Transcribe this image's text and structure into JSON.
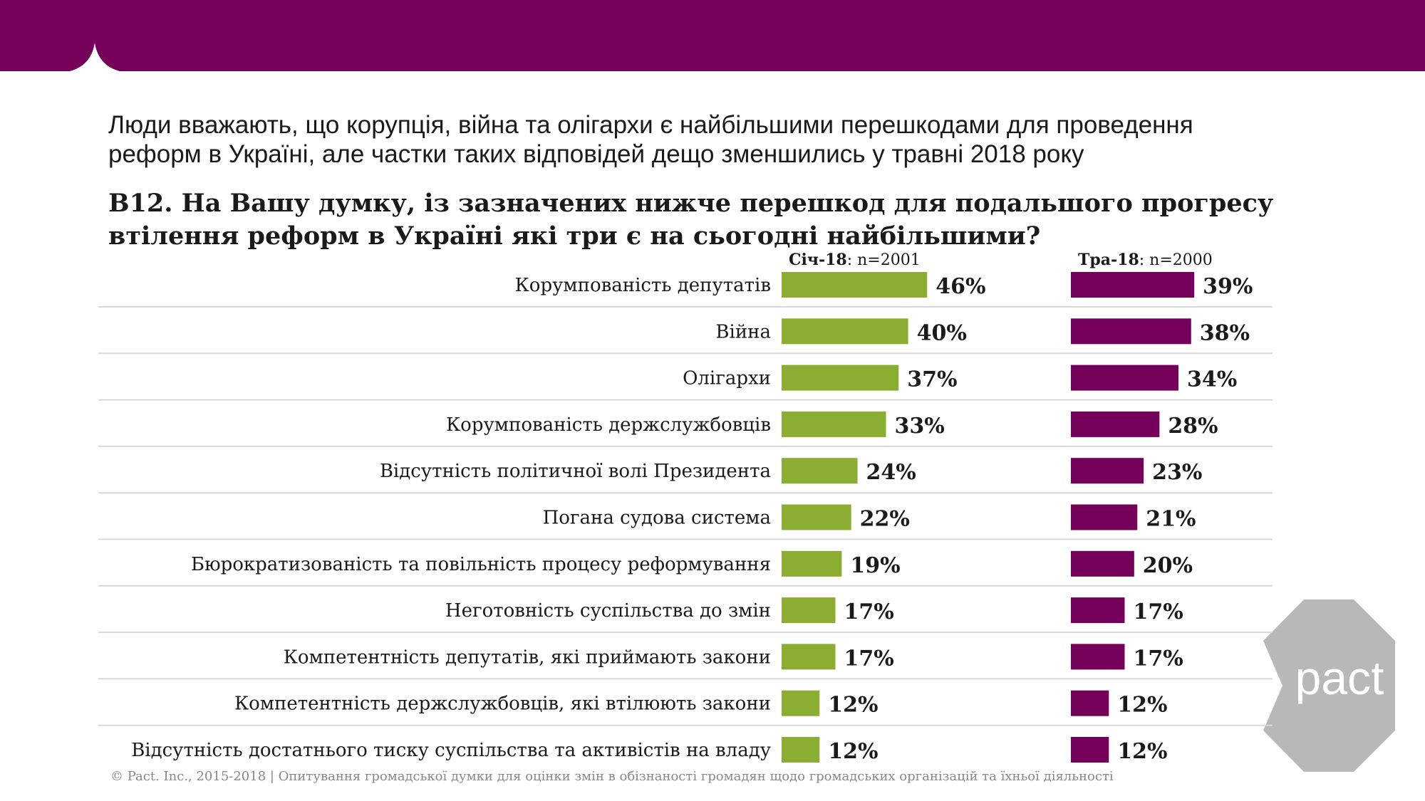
{
  "header": {
    "title_lines": [
      "Люди вважають, що корупція, війна та олігархи є найбільшими перешкодами для проведення",
      "реформ в Україні, але частки таких відповідей дещо зменшились у травні 2018 року"
    ]
  },
  "chart_data": {
    "type": "bar",
    "orientation": "horizontal",
    "title_lines": [
      "B12. На Вашу думку, із зазначених нижче перешкод для подальшого прогресу",
      "втілення реформ в Україні які три є на сьогодні найбільшими?"
    ],
    "categories": [
      "Корумпованість депутатів",
      "Війна",
      "Олігархи",
      "Корумпованість держслужбовців",
      "Відсутність політичної волі Президента",
      "Погана судова система",
      "Бюрократизованість та повільність процесу реформування",
      "Неготовність суспільства до змін",
      "Компетентність депутатів, які приймають закони",
      "Компетентність держслужбовців, які втілюють закони",
      "Відсутність достатнього тиску суспільства та активістів на владу"
    ],
    "series": [
      {
        "name": "Січ-18",
        "sample_label": ": n=2001",
        "color": "#8aad32",
        "values": [
          46,
          40,
          37,
          33,
          24,
          22,
          19,
          17,
          17,
          12,
          12
        ],
        "value_labels": [
          "46%",
          "40%",
          "37%",
          "33%",
          "24%",
          "22%",
          "19%",
          "17%",
          "17%",
          "12%",
          "12%"
        ]
      },
      {
        "name": "Тра-18",
        "sample_label": ": n=2000",
        "color": "#750059",
        "values": [
          39,
          38,
          34,
          28,
          23,
          21,
          20,
          17,
          17,
          12,
          12
        ],
        "value_labels": [
          "39%",
          "38%",
          "34%",
          "28%",
          "23%",
          "21%",
          "20%",
          "17%",
          "17%",
          "12%",
          "12%"
        ]
      }
    ]
  },
  "footer": "© Pact. Inc., 2015-2018 | Опитування громадської думки для оцінки змін в обізнаності громадян щодо громадських організацій та їхньої діяльності",
  "logo": "pact"
}
